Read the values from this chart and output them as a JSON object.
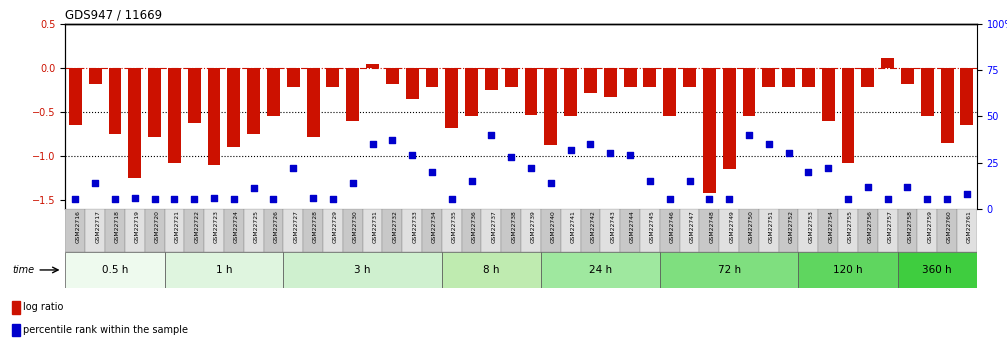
{
  "title": "GDS947 / 11669",
  "samples": [
    "GSM22716",
    "GSM22717",
    "GSM22718",
    "GSM22719",
    "GSM22720",
    "GSM22721",
    "GSM22722",
    "GSM22723",
    "GSM22724",
    "GSM22725",
    "GSM22726",
    "GSM22727",
    "GSM22728",
    "GSM22729",
    "GSM22730",
    "GSM22731",
    "GSM22732",
    "GSM22733",
    "GSM22734",
    "GSM22735",
    "GSM22736",
    "GSM22737",
    "GSM22738",
    "GSM22739",
    "GSM22740",
    "GSM22741",
    "GSM22742",
    "GSM22743",
    "GSM22744",
    "GSM22745",
    "GSM22746",
    "GSM22747",
    "GSM22748",
    "GSM22749",
    "GSM22750",
    "GSM22751",
    "GSM22752",
    "GSM22753",
    "GSM22754",
    "GSM22755",
    "GSM22756",
    "GSM22757",
    "GSM22758",
    "GSM22759",
    "GSM22760",
    "GSM22761"
  ],
  "log_ratio": [
    -0.65,
    -0.18,
    -0.75,
    -1.25,
    -0.78,
    -1.08,
    -0.63,
    -1.1,
    -0.9,
    -0.75,
    -0.55,
    -0.22,
    -0.78,
    -0.22,
    -0.6,
    0.05,
    -0.18,
    -0.35,
    -0.22,
    -0.68,
    -0.55,
    -0.25,
    -0.22,
    -0.53,
    -0.88,
    -0.55,
    -0.28,
    -0.33,
    -0.22,
    -0.22,
    -0.55,
    -0.22,
    -1.42,
    -1.15,
    -0.55,
    -0.22,
    -0.22,
    -0.22,
    -0.6,
    -1.08,
    -0.22,
    0.12,
    -0.18,
    -0.55,
    -0.85,
    -0.65
  ],
  "percentile": [
    5,
    14,
    5,
    6,
    5,
    5,
    5,
    6,
    5,
    11,
    5,
    22,
    6,
    5,
    14,
    35,
    37,
    29,
    20,
    5,
    15,
    40,
    28,
    22,
    14,
    32,
    35,
    30,
    29,
    15,
    5,
    15,
    5,
    5,
    40,
    35,
    30,
    20,
    22,
    5,
    12,
    5,
    12,
    5,
    5,
    8
  ],
  "time_groups": [
    {
      "label": "0.5 h",
      "start": 0,
      "end": 5
    },
    {
      "label": "1 h",
      "start": 5,
      "end": 11
    },
    {
      "label": "3 h",
      "start": 11,
      "end": 19
    },
    {
      "label": "8 h",
      "start": 19,
      "end": 24
    },
    {
      "label": "24 h",
      "start": 24,
      "end": 30
    },
    {
      "label": "72 h",
      "start": 30,
      "end": 37
    },
    {
      "label": "120 h",
      "start": 37,
      "end": 42
    },
    {
      "label": "360 h",
      "start": 42,
      "end": 46
    }
  ],
  "group_colors": [
    "#eefaee",
    "#dff5df",
    "#cff0cf",
    "#bfebb0",
    "#9fe89f",
    "#7fdf7f",
    "#5fd65f",
    "#3fcd3f"
  ],
  "ylim_left": [
    -1.6,
    0.5
  ],
  "ylim_right": [
    0,
    100
  ],
  "yticks_left": [
    -1.5,
    -1.0,
    -0.5,
    0.0,
    0.5
  ],
  "yticks_right": [
    0,
    25,
    50,
    75,
    100
  ],
  "bar_color": "#cc1100",
  "scatter_color": "#0000cc",
  "dotted_lines": [
    -0.5,
    -1.0
  ],
  "box_color_even": "#c8c8c8",
  "box_color_odd": "#e0e0e0"
}
